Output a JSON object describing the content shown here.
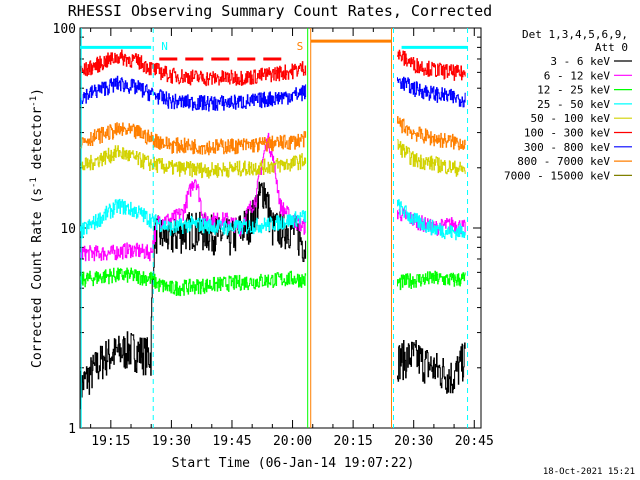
{
  "chart_data": {
    "type": "line",
    "title": "RHESSI Observing Summary Count Rates, Corrected",
    "xlabel": "Start Time (06-Jan-14 19:07:22)",
    "ylabel": "Corrected Count Rate (s⁻¹ detector⁻¹)",
    "ylabel_parts": {
      "main": "Corrected Count Rate (s",
      "sup1": "-1",
      "mid": " detector",
      "sup2": "-1",
      "end": ")"
    },
    "yscale": "log",
    "ylim": [
      1,
      100
    ],
    "xlim": [
      "19:07:22",
      "20:46:40"
    ],
    "x_ticks": [
      "19:15",
      "19:30",
      "19:45",
      "20:00",
      "20:15",
      "20:30",
      "20:45"
    ],
    "y_ticks": [
      {
        "value": 1,
        "label": "1"
      },
      {
        "value": 10,
        "label": "10"
      },
      {
        "value": 100,
        "label": "100"
      }
    ],
    "legend_header": [
      "Det 1,3,4,5,6,9,",
      "Att 0"
    ],
    "legend_position": "right",
    "grid": false,
    "timestamp": "18-Oct-2021 15:21",
    "markers": [
      {
        "label": "N",
        "time": "19:25:30",
        "color": "#00ffff"
      },
      {
        "label": "S",
        "time": "20:02:30",
        "color": "#ff7f00"
      }
    ],
    "vlines": [
      {
        "time": "19:07:40",
        "color": "#00ffff",
        "style": "solid"
      },
      {
        "time": "19:25:30",
        "color": "#00ffff",
        "style": "dash"
      },
      {
        "time": "20:03:45",
        "color": "#00ff00",
        "style": "solid"
      },
      {
        "time": "20:04:30",
        "color": "#ff7f00",
        "style": "solid"
      },
      {
        "time": "20:24:30",
        "color": "#ff7f00",
        "style": "solid"
      },
      {
        "time": "20:25:00",
        "color": "#00ffff",
        "style": "dash"
      },
      {
        "time": "20:43:20",
        "color": "#00ffff",
        "style": "dash"
      }
    ],
    "flag_bars": [
      {
        "name": "saa-cyan-left",
        "t0": "19:07:22",
        "t1": "19:25:00",
        "value": 80,
        "color": "#00ffff",
        "dashed": false
      },
      {
        "name": "night-red",
        "t0": "19:27:00",
        "t1": "19:59:00",
        "value": 70,
        "color": "#ff0000",
        "dashed": true
      },
      {
        "name": "saa-orange",
        "t0": "20:04:30",
        "t1": "20:24:30",
        "value": 86,
        "color": "#ff7f00",
        "dashed": false
      },
      {
        "name": "saa-cyan-right",
        "t0": "20:27:00",
        "t1": "20:43:20",
        "value": 80,
        "color": "#00ffff",
        "dashed": false
      }
    ],
    "series": [
      {
        "name": "3 - 6 keV",
        "color": "#000000",
        "points": [
          [
            "19:07:30",
            1.6
          ],
          [
            "19:14:00",
            2.3
          ],
          [
            "19:20:00",
            2.5
          ],
          [
            "19:25:00",
            2.3
          ],
          [
            "19:26:00",
            9.5
          ],
          [
            "19:30:00",
            9.0
          ],
          [
            "19:35:00",
            10.0
          ],
          [
            "19:40:00",
            9.5
          ],
          [
            "19:45:00",
            9.0
          ],
          [
            "19:50:00",
            11.0
          ],
          [
            "19:53:00",
            16.0
          ],
          [
            "19:55:00",
            10.0
          ],
          [
            "20:00:00",
            10.0
          ],
          [
            "20:03:30",
            8.0
          ],
          [
            "20:26:00",
            2.2
          ],
          [
            "20:30:00",
            2.3
          ],
          [
            "20:35:00",
            2.0
          ],
          [
            "20:40:00",
            1.8
          ],
          [
            "20:43:00",
            2.3
          ]
        ]
      },
      {
        "name": "6 - 12 keV",
        "color": "#ff00ff",
        "points": [
          [
            "19:07:30",
            7.5
          ],
          [
            "19:15:00",
            7.5
          ],
          [
            "19:20:00",
            7.8
          ],
          [
            "19:25:00",
            7.5
          ],
          [
            "19:27:00",
            11.0
          ],
          [
            "19:30:00",
            11.0
          ],
          [
            "19:33:00",
            12.0
          ],
          [
            "19:36:00",
            18.0
          ],
          [
            "19:38:00",
            11.0
          ],
          [
            "19:44:00",
            11.0
          ],
          [
            "19:47:00",
            10.0
          ],
          [
            "19:51:00",
            14.0
          ],
          [
            "19:54:00",
            28.0
          ],
          [
            "19:57:00",
            13.0
          ],
          [
            "20:00:00",
            11.0
          ],
          [
            "20:03:30",
            10.0
          ],
          [
            "20:26:00",
            12.0
          ],
          [
            "20:30:00",
            11.0
          ],
          [
            "20:35:00",
            10.0
          ],
          [
            "20:40:00",
            10.5
          ],
          [
            "20:43:00",
            10.0
          ]
        ]
      },
      {
        "name": "12 - 25 keV",
        "color": "#00ff00",
        "points": [
          [
            "19:07:30",
            5.5
          ],
          [
            "19:15:00",
            5.8
          ],
          [
            "19:20:00",
            5.8
          ],
          [
            "19:25:00",
            5.6
          ],
          [
            "19:27:00",
            5.2
          ],
          [
            "19:30:00",
            5.0
          ],
          [
            "19:40:00",
            5.2
          ],
          [
            "19:50:00",
            5.4
          ],
          [
            "19:55:00",
            5.5
          ],
          [
            "20:00:00",
            5.6
          ],
          [
            "20:03:30",
            5.5
          ],
          [
            "20:26:00",
            5.3
          ],
          [
            "20:30:00",
            5.5
          ],
          [
            "20:35:00",
            5.6
          ],
          [
            "20:40:00",
            5.5
          ],
          [
            "20:43:00",
            5.6
          ]
        ]
      },
      {
        "name": "25 - 50 keV",
        "color": "#00ffff",
        "points": [
          [
            "19:07:30",
            9.5
          ],
          [
            "19:12:00",
            11.0
          ],
          [
            "19:17:00",
            13.0
          ],
          [
            "19:22:00",
            12.0
          ],
          [
            "19:25:00",
            11.0
          ],
          [
            "19:30:00",
            10.0
          ],
          [
            "19:35:00",
            10.5
          ],
          [
            "19:45:00",
            10.0
          ],
          [
            "19:55:00",
            10.5
          ],
          [
            "20:00:00",
            11.0
          ],
          [
            "20:03:30",
            11.5
          ],
          [
            "20:26:00",
            13.0
          ],
          [
            "20:30:00",
            11.0
          ],
          [
            "20:35:00",
            10.0
          ],
          [
            "20:40:00",
            9.5
          ],
          [
            "20:43:00",
            9.8
          ]
        ]
      },
      {
        "name": "50 - 100 keV",
        "color": "#d2d200",
        "points": [
          [
            "19:07:30",
            20.0
          ],
          [
            "19:12:00",
            22.0
          ],
          [
            "19:17:00",
            24.0
          ],
          [
            "19:22:00",
            22.0
          ],
          [
            "19:25:00",
            21.0
          ],
          [
            "19:30:00",
            20.0
          ],
          [
            "19:40:00",
            19.5
          ],
          [
            "19:50:00",
            20.0
          ],
          [
            "19:55:00",
            20.5
          ],
          [
            "20:00:00",
            21.0
          ],
          [
            "20:03:30",
            22.0
          ],
          [
            "20:26:00",
            26.0
          ],
          [
            "20:30:00",
            22.0
          ],
          [
            "20:35:00",
            21.0
          ],
          [
            "20:40:00",
            20.0
          ],
          [
            "20:43:00",
            19.5
          ]
        ]
      },
      {
        "name": "100 - 300 keV",
        "color": "#ff0000",
        "points": [
          [
            "19:07:30",
            60.0
          ],
          [
            "19:12:00",
            66.0
          ],
          [
            "19:17:00",
            72.0
          ],
          [
            "19:22:00",
            68.0
          ],
          [
            "19:25:00",
            63.0
          ],
          [
            "19:30:00",
            58.0
          ],
          [
            "19:40:00",
            56.0
          ],
          [
            "19:50:00",
            57.0
          ],
          [
            "20:00:00",
            61.0
          ],
          [
            "20:03:30",
            64.0
          ],
          [
            "20:26:00",
            74.0
          ],
          [
            "20:30:00",
            66.0
          ],
          [
            "20:35:00",
            62.0
          ],
          [
            "20:40:00",
            60.0
          ],
          [
            "20:43:00",
            59.0
          ]
        ]
      },
      {
        "name": "300 - 800 keV",
        "color": "#0000ff",
        "points": [
          [
            "19:07:30",
            45.0
          ],
          [
            "19:12:00",
            49.0
          ],
          [
            "19:17:00",
            53.0
          ],
          [
            "19:22:00",
            50.0
          ],
          [
            "19:25:00",
            47.0
          ],
          [
            "19:30:00",
            43.0
          ],
          [
            "19:40:00",
            42.0
          ],
          [
            "19:50:00",
            43.0
          ],
          [
            "20:00:00",
            46.0
          ],
          [
            "20:03:30",
            48.0
          ],
          [
            "20:26:00",
            55.0
          ],
          [
            "20:30:00",
            50.0
          ],
          [
            "20:35:00",
            47.0
          ],
          [
            "20:40:00",
            45.0
          ],
          [
            "20:43:00",
            44.0
          ]
        ]
      },
      {
        "name": "800 - 7000 keV",
        "color": "#ff7f00",
        "points": [
          [
            "19:07:30",
            27.0
          ],
          [
            "19:12:00",
            29.0
          ],
          [
            "19:17:00",
            31.0
          ],
          [
            "19:22:00",
            30.0
          ],
          [
            "19:25:00",
            28.0
          ],
          [
            "19:30:00",
            26.0
          ],
          [
            "19:40:00",
            25.5
          ],
          [
            "19:50:00",
            26.0
          ],
          [
            "20:00:00",
            27.0
          ],
          [
            "20:03:30",
            28.0
          ],
          [
            "20:26:00",
            34.0
          ],
          [
            "20:30:00",
            30.0
          ],
          [
            "20:35:00",
            28.0
          ],
          [
            "20:40:00",
            27.0
          ],
          [
            "20:43:00",
            26.5
          ]
        ]
      },
      {
        "name": "7000 - 15000 keV",
        "color": "#808000",
        "points": []
      }
    ]
  }
}
